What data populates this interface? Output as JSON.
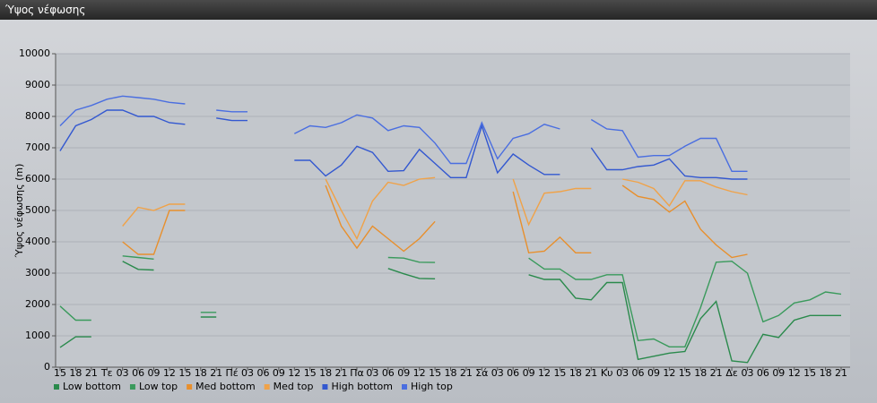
{
  "window_title": "Ύψος νέφωσης",
  "chart_data": {
    "type": "line",
    "y_label": "Ύψος νέφωσης (m)",
    "categories": [
      "15",
      "18",
      "21",
      "Τε",
      "03",
      "06",
      "09",
      "12",
      "15",
      "18",
      "21",
      "Πέ",
      "03",
      "06",
      "09",
      "12",
      "15",
      "18",
      "21",
      "Πα",
      "03",
      "06",
      "09",
      "12",
      "15",
      "18",
      "21",
      "Σά",
      "03",
      "06",
      "09",
      "12",
      "15",
      "18",
      "21",
      "Κυ",
      "03",
      "06",
      "09",
      "12",
      "15",
      "18",
      "21",
      "Δε",
      "03",
      "06",
      "09",
      "12",
      "15",
      "18",
      "21"
    ],
    "ylim": [
      0,
      10000
    ],
    "yticks": [
      0,
      1000,
      2000,
      3000,
      4000,
      5000,
      6000,
      7000,
      8000,
      9000,
      10000
    ],
    "grid": true,
    "legend": "bottom",
    "series": [
      {
        "name": "Low bottom",
        "color": "#2a8a4c",
        "values": [
          630,
          970,
          970,
          null,
          3380,
          3120,
          3100,
          null,
          null,
          1600,
          1600,
          null,
          null,
          null,
          null,
          null,
          null,
          null,
          null,
          null,
          null,
          3150,
          2980,
          2830,
          2820,
          null,
          null,
          null,
          null,
          null,
          2950,
          2800,
          2800,
          2200,
          2150,
          2700,
          2700,
          250,
          350,
          450,
          500,
          1550,
          2100,
          200,
          150,
          1050,
          950,
          1500,
          1650,
          1650,
          1650
        ]
      },
      {
        "name": "Low top",
        "color": "#3a9a5c",
        "values": [
          1950,
          1500,
          1500,
          null,
          3550,
          3500,
          3450,
          null,
          null,
          1750,
          1750,
          null,
          null,
          null,
          null,
          null,
          null,
          null,
          null,
          null,
          null,
          3500,
          3480,
          3350,
          3340,
          null,
          null,
          null,
          null,
          null,
          3480,
          3130,
          3130,
          2800,
          2800,
          2950,
          2950,
          850,
          900,
          650,
          650,
          1900,
          3350,
          3380,
          3000,
          1450,
          1650,
          2050,
          2150,
          2400,
          2330
        ]
      },
      {
        "name": "Med bottom",
        "color": "#e88f2c",
        "values": [
          null,
          null,
          null,
          null,
          4000,
          3600,
          3600,
          5000,
          5000,
          null,
          null,
          null,
          null,
          null,
          null,
          null,
          null,
          5800,
          4500,
          3800,
          4500,
          4100,
          3700,
          4100,
          4650,
          null,
          null,
          null,
          null,
          5600,
          3650,
          3700,
          4150,
          3650,
          3650,
          null,
          5800,
          5450,
          5350,
          4950,
          5300,
          4400,
          3900,
          3500,
          3600,
          null,
          null,
          null,
          null,
          null,
          null
        ]
      },
      {
        "name": "Med top",
        "color": "#f0a248",
        "values": [
          null,
          null,
          null,
          null,
          4500,
          5100,
          5000,
          5200,
          5200,
          null,
          null,
          null,
          null,
          null,
          null,
          null,
          null,
          6000,
          5000,
          4100,
          5300,
          5900,
          5800,
          6000,
          6050,
          null,
          null,
          null,
          null,
          6000,
          4550,
          5550,
          5600,
          5700,
          5700,
          null,
          6000,
          5900,
          5700,
          5150,
          5950,
          5950,
          5750,
          5600,
          5500,
          null,
          null,
          null,
          null,
          null,
          null
        ]
      },
      {
        "name": "High bottom",
        "color": "#3358d0",
        "values": [
          6900,
          7700,
          7900,
          8200,
          8200,
          8000,
          8000,
          7800,
          7750,
          null,
          7950,
          7870,
          7870,
          null,
          null,
          6600,
          6600,
          6100,
          6450,
          7050,
          6850,
          6250,
          6270,
          6950,
          6500,
          6050,
          6050,
          7700,
          6200,
          6800,
          6450,
          6150,
          6150,
          null,
          7000,
          6300,
          6300,
          6400,
          6450,
          6650,
          6100,
          6050,
          6050,
          6000,
          6000,
          null,
          null,
          null,
          null,
          null,
          null
        ]
      },
      {
        "name": "High top",
        "color": "#4a6ee0",
        "values": [
          7700,
          8200,
          8350,
          8550,
          8650,
          8600,
          8550,
          8450,
          8400,
          null,
          8200,
          8150,
          8150,
          null,
          null,
          7450,
          7700,
          7650,
          7800,
          8050,
          7950,
          7550,
          7700,
          7650,
          7150,
          6500,
          6500,
          7800,
          6650,
          7300,
          7450,
          7750,
          7600,
          null,
          7900,
          7600,
          7550,
          6700,
          6750,
          6750,
          7050,
          7300,
          7300,
          6250,
          6250,
          null,
          null,
          null,
          null,
          null,
          null
        ]
      }
    ]
  }
}
